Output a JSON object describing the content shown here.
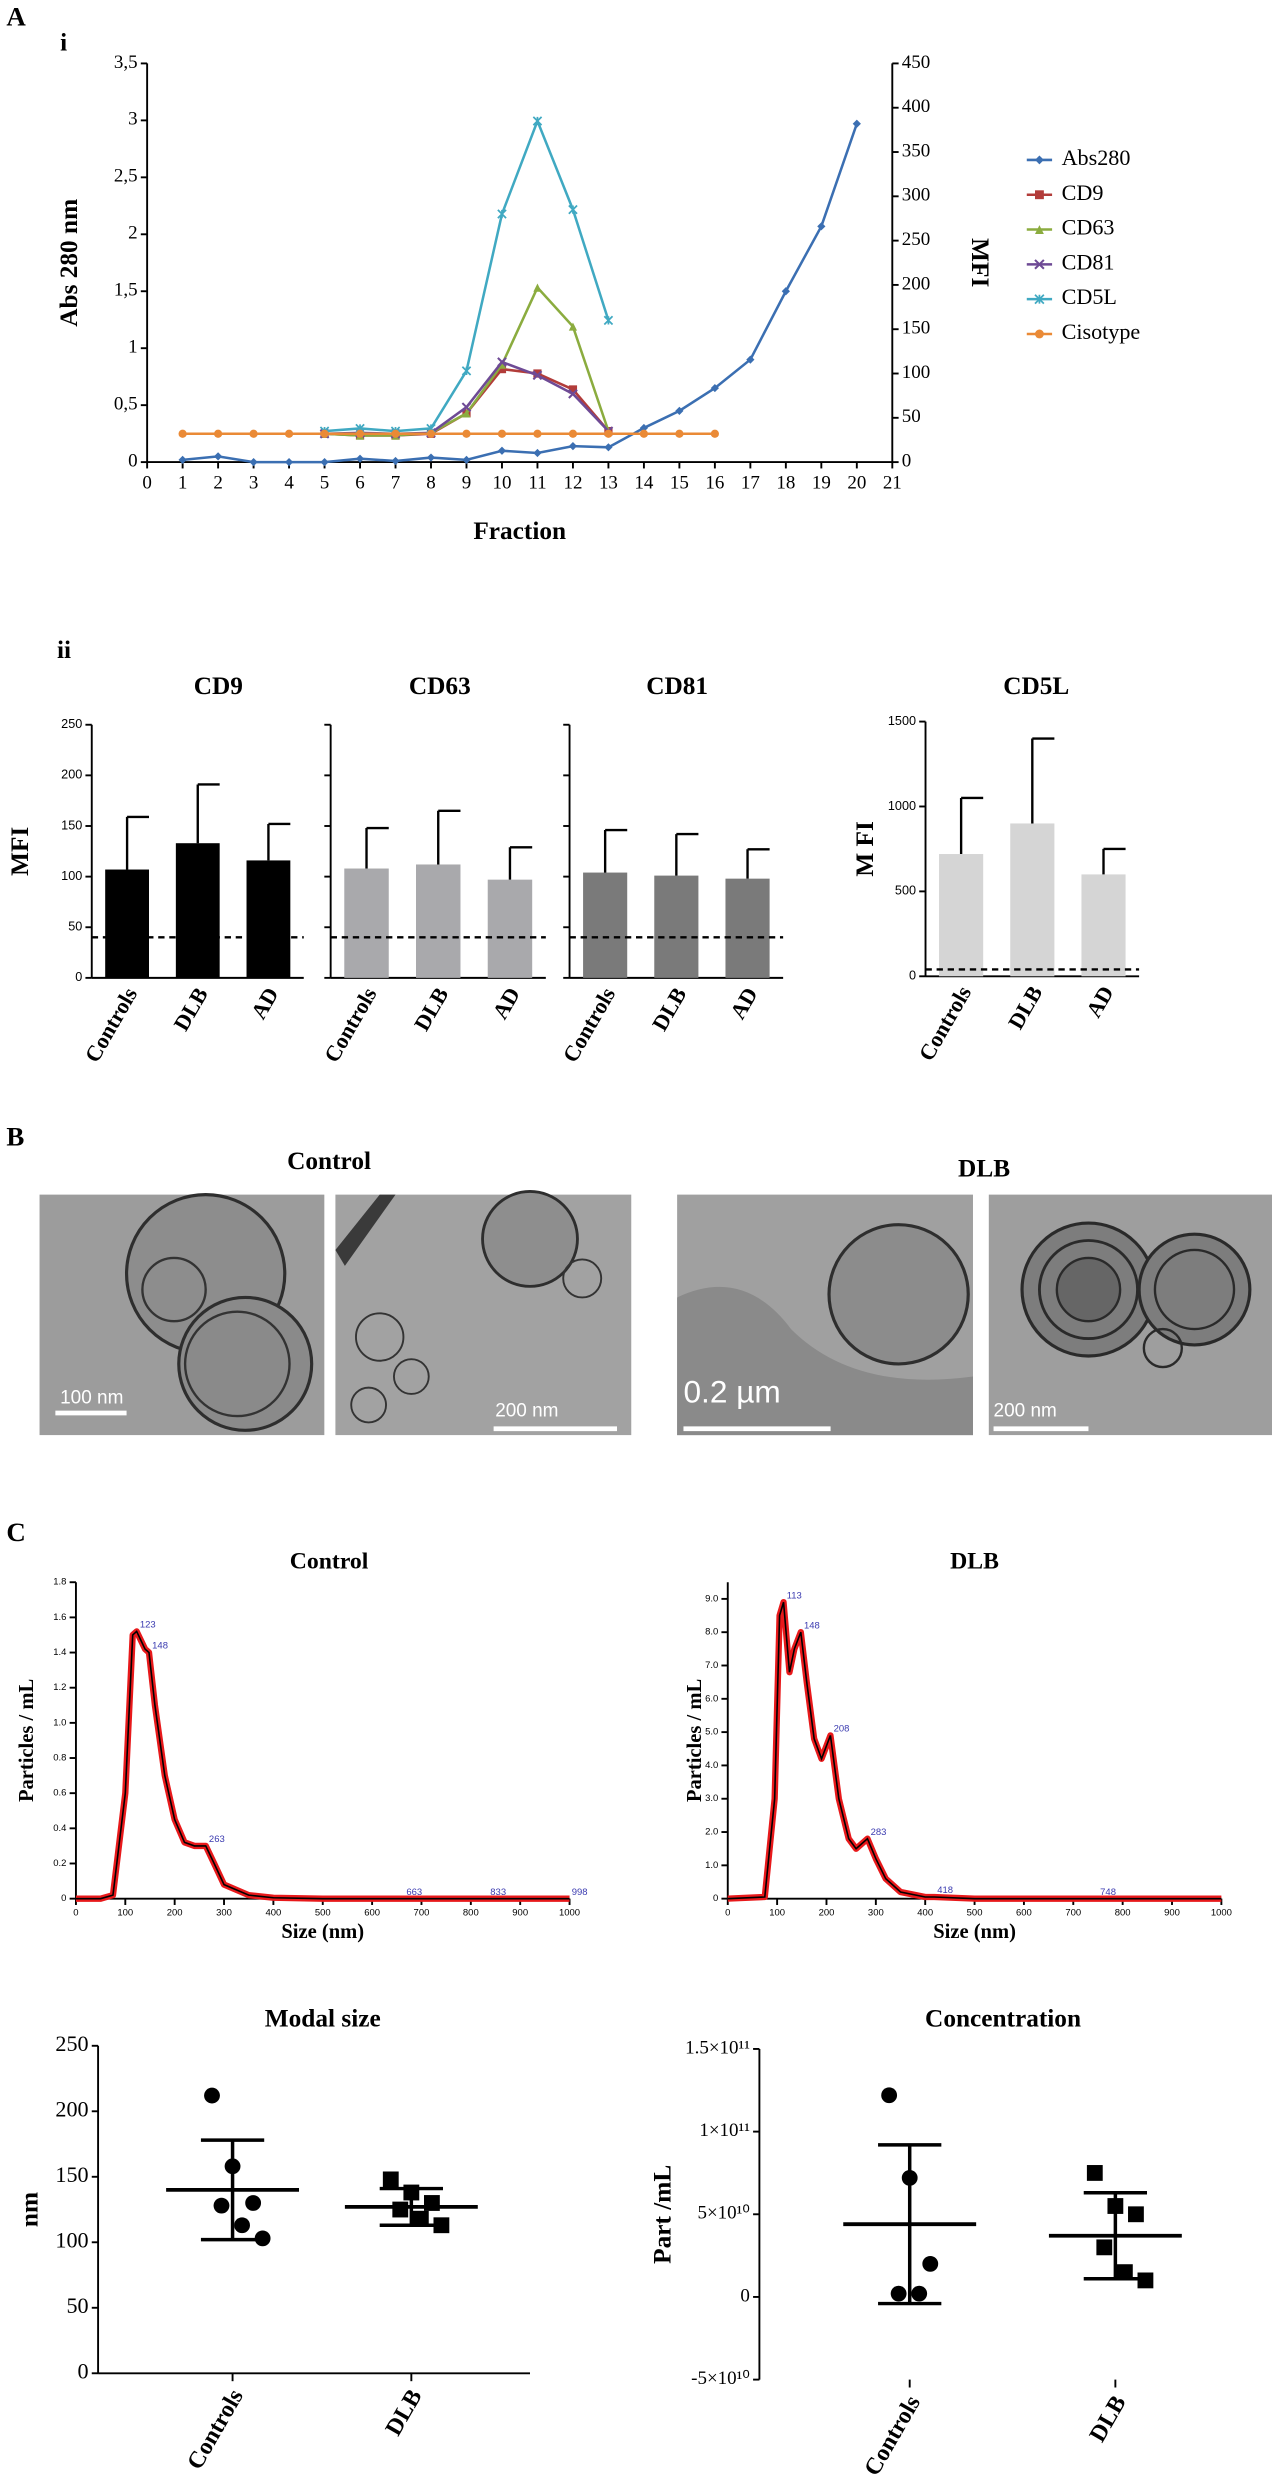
{
  "panel_labels": [
    "A",
    "i",
    "ii",
    "B",
    "C"
  ],
  "micrographs": {
    "titles": [
      "Control",
      "DLB"
    ],
    "scale_bars": [
      "100 nm",
      "200 nm",
      "0.2 µm",
      "200 nm"
    ]
  },
  "chart_data": [
    {
      "type": "line",
      "xlabel": "Fraction",
      "ylabel": "Abs 280 nm",
      "y2label": "MFI",
      "legend": "right",
      "x": [
        1,
        2,
        3,
        4,
        5,
        6,
        7,
        8,
        9,
        10,
        11,
        12,
        13,
        14,
        15,
        16,
        17,
        18,
        19,
        20
      ],
      "xlim": [
        0,
        21
      ],
      "xticks": [
        0,
        1,
        2,
        3,
        4,
        5,
        6,
        7,
        8,
        9,
        10,
        11,
        12,
        13,
        14,
        15,
        16,
        17,
        18,
        19,
        20,
        21
      ],
      "ylim": [
        0,
        3.5
      ],
      "yticks": [
        0,
        {
          "value": 0.5,
          "label": "0,5"
        },
        1,
        {
          "value": 1.5,
          "label": "1,5"
        },
        2,
        {
          "value": 2.5,
          "label": "2,5"
        },
        3,
        {
          "value": 3.5,
          "label": "3,5"
        }
      ],
      "y2lim": [
        0,
        450
      ],
      "y2ticks": [
        0,
        50,
        100,
        150,
        200,
        250,
        300,
        350,
        400,
        450
      ],
      "series": [
        {
          "name": "Abs280",
          "color": "#3b6fb2",
          "marker": "diamond",
          "values": [
            0.02,
            0.05,
            0,
            0,
            0,
            0.03,
            0.01,
            0.04,
            0.02,
            0.1,
            0.08,
            0.14,
            0.13,
            0.3,
            0.45,
            0.65,
            0.9,
            1.5,
            2.07,
            2.97
          ]
        },
        {
          "name": "CD9",
          "color": "#b23c3a",
          "marker": "square",
          "axis": "y2",
          "values": [
            null,
            null,
            null,
            null,
            32,
            30,
            30,
            32,
            55,
            105,
            100,
            82,
            35,
            null,
            null,
            null,
            null,
            null,
            null,
            null
          ]
        },
        {
          "name": "CD63",
          "color": "#8bac3f",
          "marker": "triangle",
          "axis": "y2",
          "values": [
            null,
            null,
            null,
            null,
            32,
            30,
            30,
            33,
            55,
            110,
            197,
            153,
            35,
            null,
            null,
            null,
            null,
            null,
            null,
            null
          ]
        },
        {
          "name": "CD81",
          "color": "#6e4a95",
          "marker": "cross",
          "axis": "y2",
          "values": [
            null,
            null,
            null,
            null,
            32,
            33,
            32,
            33,
            62,
            113,
            98,
            77,
            35,
            null,
            null,
            null,
            null,
            null,
            null,
            null
          ]
        },
        {
          "name": "CD5L",
          "color": "#40a9c2",
          "marker": "star",
          "axis": "y2",
          "values": [
            null,
            null,
            null,
            null,
            35,
            38,
            35,
            38,
            103,
            280,
            385,
            285,
            160,
            null,
            null,
            null,
            null,
            null,
            null,
            null
          ]
        },
        {
          "name": "Cisotype",
          "color": "#ea8a36",
          "marker": "circle",
          "axis": "y2",
          "values": [
            32,
            32,
            32,
            32,
            32,
            32,
            32,
            32,
            32,
            32,
            32,
            32,
            32,
            32,
            32,
            32,
            null,
            null,
            null,
            null
          ]
        }
      ]
    },
    {
      "type": "bar",
      "title": "CD9",
      "ylabel": "MFI",
      "categories": [
        "Controls",
        "DLB",
        "AD"
      ],
      "values": [
        107,
        133,
        116
      ],
      "errors": [
        52,
        58,
        36
      ],
      "color": "#000000",
      "ref_line": 40,
      "ylim": [
        0,
        250
      ],
      "yticks": [
        0,
        50,
        100,
        150,
        200,
        250
      ],
      "show_tick_labels": true
    },
    {
      "type": "bar",
      "title": "CD63",
      "categories": [
        "Controls",
        "DLB",
        "AD"
      ],
      "values": [
        108,
        112,
        97
      ],
      "errors": [
        40,
        53,
        32
      ],
      "color": "#a9a9ac",
      "ref_line": 40,
      "ylim": [
        0,
        250
      ],
      "yticks": [
        0,
        50,
        100,
        150,
        200,
        250
      ],
      "show_tick_labels": false
    },
    {
      "type": "bar",
      "title": "CD81",
      "categories": [
        "Controls",
        "DLB",
        "AD"
      ],
      "values": [
        104,
        101,
        98
      ],
      "errors": [
        42,
        41,
        29
      ],
      "color": "#7a7a7a",
      "ref_line": 40,
      "ylim": [
        0,
        250
      ],
      "yticks": [
        0,
        50,
        100,
        150,
        200,
        250
      ],
      "show_tick_labels": false
    },
    {
      "type": "bar",
      "title": "CD5L",
      "ylabel": "M FI",
      "categories": [
        "Controls",
        "DLB",
        "AD"
      ],
      "values": [
        720,
        900,
        600
      ],
      "errors": [
        330,
        500,
        150
      ],
      "color": "#d5d5d5",
      "ref_line": 40,
      "ylim": [
        0,
        1500
      ],
      "yticks": [
        0,
        500,
        1000,
        1500
      ],
      "show_tick_labels": true
    },
    {
      "type": "line",
      "title": "Control",
      "xlabel": "Size (nm)",
      "ylabel": "Particles / mL",
      "x": [
        0,
        50,
        75,
        100,
        115,
        123,
        140,
        148,
        160,
        180,
        200,
        220,
        240,
        263,
        280,
        300,
        350,
        400,
        500,
        1000
      ],
      "xlim": [
        0,
        1000
      ],
      "xticks": [
        0,
        100,
        200,
        300,
        400,
        500,
        600,
        700,
        800,
        900,
        1000
      ],
      "ylim": [
        0,
        1.8
      ],
      "yticks": [
        0,
        0.2,
        0.4,
        0.6,
        0.8,
        {
          "value": 1.0,
          "label": "1.0"
        },
        1.2,
        1.4,
        1.6,
        1.8
      ],
      "series": [
        {
          "color": "#000000",
          "band_color": "#e8191b",
          "values": [
            0,
            0,
            0.02,
            0.6,
            1.5,
            1.52,
            1.42,
            1.4,
            1.1,
            0.7,
            0.45,
            0.32,
            0.3,
            0.3,
            0.2,
            0.08,
            0.02,
            0.005,
            0,
            0
          ]
        }
      ],
      "annotations": [
        {
          "text": "123",
          "x": 123,
          "y": 1.52
        },
        {
          "text": "148",
          "x": 148,
          "y": 1.4
        },
        {
          "text": "263",
          "x": 263,
          "y": 0.3
        },
        {
          "text": "663",
          "x": 663,
          "y": 0
        },
        {
          "text": "833",
          "x": 833,
          "y": 0
        },
        {
          "text": "998",
          "x": 998,
          "y": 0
        }
      ]
    },
    {
      "type": "line",
      "title": "DLB",
      "xlabel": "Size (nm)",
      "ylabel": "Particles / mL",
      "x": [
        0,
        75,
        95,
        105,
        113,
        125,
        135,
        148,
        160,
        175,
        190,
        208,
        225,
        245,
        260,
        283,
        300,
        320,
        350,
        400,
        418,
        500,
        748,
        1000
      ],
      "xlim": [
        0,
        1000
      ],
      "xticks": [
        0,
        100,
        200,
        300,
        400,
        500,
        600,
        700,
        800,
        900,
        1000
      ],
      "ylim": [
        0,
        9.5
      ],
      "yticks": [
        0,
        {
          "value": 1,
          "label": "1.0"
        },
        {
          "value": 2,
          "label": "2.0"
        },
        {
          "value": 3,
          "label": "3.0"
        },
        {
          "value": 4,
          "label": "4.0"
        },
        {
          "value": 5,
          "label": "5.0"
        },
        {
          "value": 6,
          "label": "6.0"
        },
        {
          "value": 7,
          "label": "7.0"
        },
        {
          "value": 8,
          "label": "8.0"
        },
        {
          "value": 9,
          "label": "9.0"
        }
      ],
      "series": [
        {
          "color": "#000000",
          "band_color": "#e8191b",
          "values": [
            0,
            0.05,
            3,
            8.5,
            8.9,
            6.8,
            7.5,
            8.0,
            6.5,
            4.8,
            4.2,
            4.9,
            3,
            1.8,
            1.5,
            1.8,
            1.2,
            0.6,
            0.2,
            0.05,
            0.05,
            0,
            0,
            0
          ]
        }
      ],
      "annotations": [
        {
          "text": "113",
          "x": 113,
          "y": 8.9
        },
        {
          "text": "148",
          "x": 148,
          "y": 8.0
        },
        {
          "text": "208",
          "x": 208,
          "y": 4.9
        },
        {
          "text": "283",
          "x": 283,
          "y": 1.8
        },
        {
          "text": "418",
          "x": 418,
          "y": 0.05
        },
        {
          "text": "748",
          "x": 748,
          "y": 0
        }
      ]
    },
    {
      "type": "strip",
      "title": "Modal size",
      "ylabel": "nm",
      "categories": [
        "Controls",
        "DLB"
      ],
      "markers": [
        "circle",
        "square"
      ],
      "color": "#000000",
      "values": [
        [
          212,
          158,
          130,
          128,
          113,
          103
        ],
        [
          148,
          138,
          130,
          125,
          118,
          113
        ]
      ],
      "means": [
        140,
        127
      ],
      "sds": [
        38,
        14
      ],
      "ylim": [
        0,
        250
      ],
      "yticks": [
        0,
        50,
        100,
        150,
        200,
        250
      ]
    },
    {
      "type": "strip",
      "title": "Concentration",
      "ylabel": "Part /mL",
      "categories": [
        "Controls",
        "DLB"
      ],
      "markers": [
        "circle",
        "square"
      ],
      "color": "#000000",
      "values": [
        [
          122000000000,
          72000000000,
          20000000000,
          2000000000,
          2000000000
        ],
        [
          75000000000,
          55000000000,
          50000000000,
          30000000000,
          15000000000,
          10000000000
        ]
      ],
      "means": [
        44000000000,
        37000000000
      ],
      "sds": [
        48000000000,
        26000000000
      ],
      "ylim": [
        -50000000000,
        150000000000
      ],
      "yticks": [
        {
          "value": -50000000000,
          "label": "-5×10¹⁰"
        },
        0,
        {
          "value": 50000000000,
          "label": "5×10¹⁰"
        },
        {
          "value": 100000000000,
          "label": "1×10¹¹"
        },
        {
          "value": 150000000000,
          "label": "1.5×10¹¹"
        }
      ]
    }
  ]
}
